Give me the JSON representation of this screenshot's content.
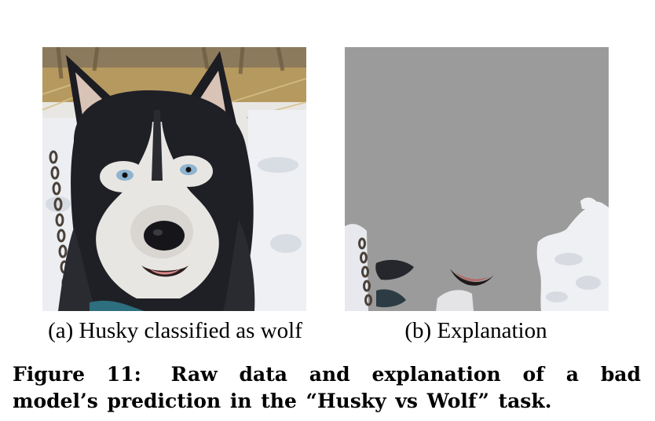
{
  "figure": {
    "label": "Figure 11:",
    "caption_line1": "Raw data and explanation of a bad",
    "caption_line2": "model’s prediction in the “Husky vs Wolf” task."
  },
  "panels": [
    {
      "subcaption": "(a) Husky classified as wolf",
      "image": "photo of a husky dog's face in front of snow and straw"
    },
    {
      "subcaption": "(b) Explanation",
      "image": "gray-masked explanation showing only snow regions and small fragments"
    }
  ],
  "colors": {
    "mask_gray": "#9b9b9b",
    "snow": "#eef0f4",
    "fur_dark": "#1c1d22",
    "fur_light": "#e8e6e3"
  }
}
